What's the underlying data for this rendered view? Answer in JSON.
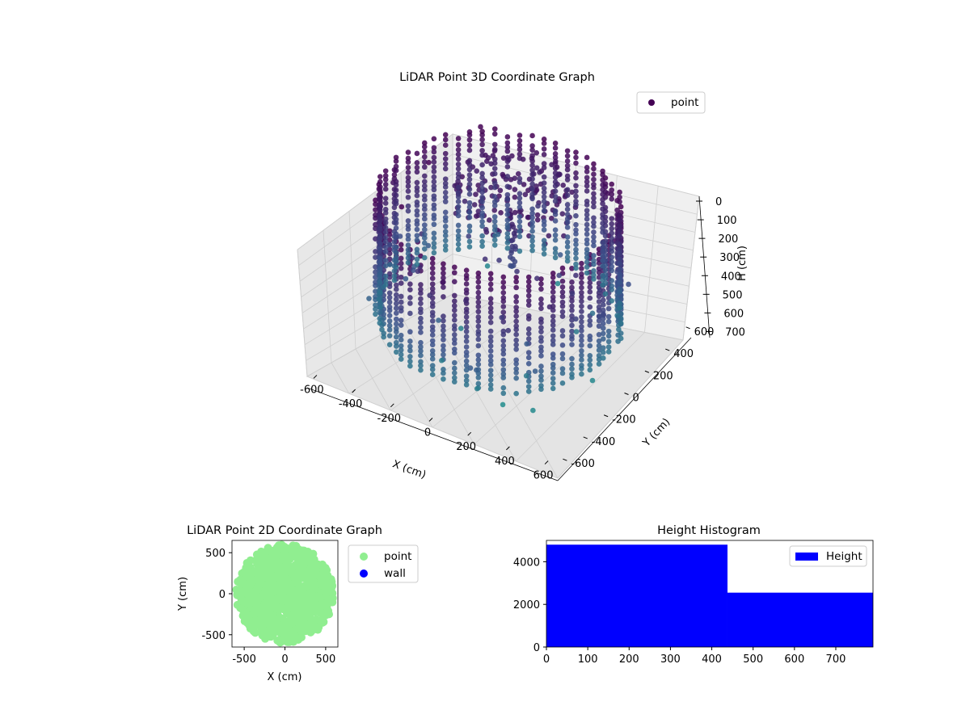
{
  "chart_data": [
    {
      "type": "scatter",
      "title": "LiDAR Point 3D Coordinate Graph",
      "xlabel": "X (cm)",
      "ylabel": "Y (cm)",
      "zlabel": "H (cm)",
      "xlim": [
        -650,
        650
      ],
      "ylim": [
        -650,
        650
      ],
      "zlim": [
        750,
        0
      ],
      "x_ticks": [
        "-600",
        "-400",
        "-200",
        "0",
        "200",
        "400",
        "600"
      ],
      "y_ticks": [
        "-600",
        "-400",
        "-200",
        "0",
        "200",
        "400",
        "600"
      ],
      "z_ticks": [
        "0",
        "100",
        "200",
        "300",
        "400",
        "500",
        "600",
        "700"
      ],
      "legend": {
        "entries": [
          "point"
        ],
        "placement": "top-right"
      },
      "colormap": [
        "#440154",
        "#3b528b",
        "#21908d"
      ],
      "grid": true,
      "series": [
        {
          "name": "point",
          "description_of_shape": "cylindrical wall surface of radius about 550 cm, heights 0-600 cm, with a vertical column near center and scattered outliers",
          "sample_points": [
            {
              "x": 0,
              "y": 0,
              "h": 150
            },
            {
              "x": 0,
              "y": 0,
              "h": 300
            },
            {
              "x": 550,
              "y": 0,
              "h": 100
            },
            {
              "x": -550,
              "y": 0,
              "h": 100
            },
            {
              "x": 0,
              "y": 550,
              "h": 100
            },
            {
              "x": 0,
              "y": -550,
              "h": 100
            },
            {
              "x": 400,
              "y": -400,
              "h": 500
            },
            {
              "x": -400,
              "y": -400,
              "h": 500
            },
            {
              "x": 350,
              "y": 400,
              "h": 50
            },
            {
              "x": -300,
              "y": 450,
              "h": 700
            }
          ]
        }
      ]
    },
    {
      "type": "scatter",
      "title": "LiDAR Point 2D Coordinate Graph",
      "xlabel": "X (cm)",
      "ylabel": "Y (cm)",
      "xlim": [
        -650,
        650
      ],
      "ylim": [
        -650,
        650
      ],
      "x_ticks": [
        "-500",
        "0",
        "500"
      ],
      "y_ticks": [
        "500",
        "0",
        "-500"
      ],
      "legend": {
        "entries": [
          "point",
          "wall"
        ],
        "placement": "outside-right"
      },
      "colors": {
        "point": "#90ee90",
        "wall": "#0000ff"
      },
      "series": [
        {
          "name": "point",
          "description_of_shape": "filled disc of points of radius about 600 cm",
          "outliers": [
            {
              "x": -300,
              "y": 410
            },
            {
              "x": -180,
              "y": 430
            },
            {
              "x": 200,
              "y": 440
            },
            {
              "x": 480,
              "y": 320
            },
            {
              "x": 480,
              "y": 120
            },
            {
              "x": -250,
              "y": 300
            }
          ]
        },
        {
          "name": "wall",
          "points": []
        }
      ]
    },
    {
      "type": "bar",
      "title": "Height Histogram",
      "xlabel": "",
      "ylabel": "",
      "xlim": [
        0,
        790
      ],
      "ylim": [
        0,
        5000
      ],
      "x_ticks": [
        "0",
        "100",
        "200",
        "300",
        "400",
        "500",
        "600",
        "700"
      ],
      "y_ticks": [
        "0",
        "2000",
        "4000"
      ],
      "bins": [
        {
          "from": 0,
          "to": 438,
          "count": 4800
        },
        {
          "from": 438,
          "to": 790,
          "count": 2550
        }
      ],
      "color": "#0000ff",
      "legend": {
        "entries": [
          "Height"
        ],
        "placement": "top-right"
      }
    }
  ]
}
